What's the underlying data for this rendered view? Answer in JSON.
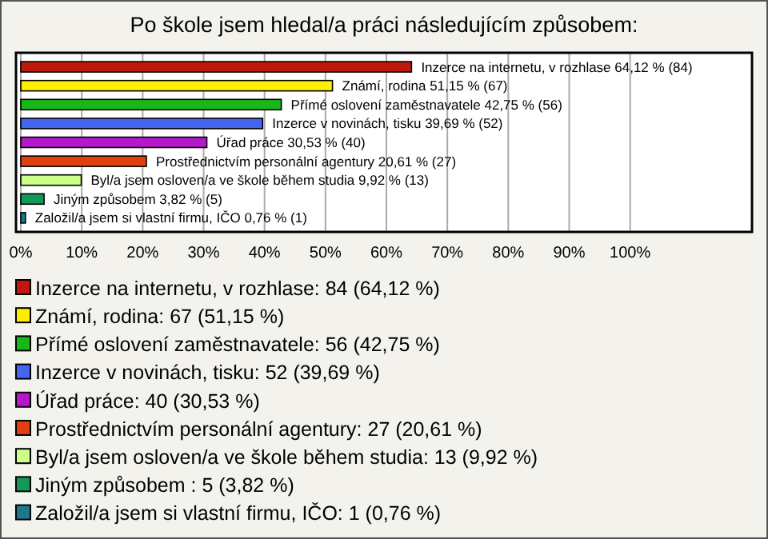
{
  "chart_data": {
    "type": "bar",
    "orientation": "horizontal",
    "title": "Po škole jsem hledal/a práci následujícím způsobem:",
    "categories": [
      null,
      null,
      null,
      null,
      null,
      null,
      null,
      null,
      null
    ],
    "series": [
      {
        "name": "Inzerce na internetu, v rozhlase: 84 (64,12 %)",
        "color": "#c0180c",
        "values": [
          64.12,
          null,
          null,
          null,
          null,
          null,
          null,
          null,
          null
        ],
        "value_labels": [
          "Inzerce na internetu, v rozhlase 64,12 % (84)",
          null,
          null,
          null,
          null,
          null,
          null,
          null,
          null
        ]
      },
      {
        "name": "Známí, rodina: 67 (51,15 %)",
        "color": "#ffee00",
        "values": [
          null,
          51.15,
          null,
          null,
          null,
          null,
          null,
          null,
          null
        ],
        "value_labels": [
          null,
          "Známí, rodina 51,15 % (67)",
          null,
          null,
          null,
          null,
          null,
          null,
          null
        ]
      },
      {
        "name": "Přímé oslovení zaměstnavatele: 56 (42,75 %)",
        "color": "#18b818",
        "values": [
          null,
          null,
          42.75,
          null,
          null,
          null,
          null,
          null,
          null
        ],
        "value_labels": [
          null,
          null,
          "Přímé oslovení zaměstnavatele 42,75 % (56)",
          null,
          null,
          null,
          null,
          null,
          null
        ]
      },
      {
        "name": "Inzerce v novinách, tisku: 52 (39,69 %)",
        "color": "#4466ee",
        "values": [
          null,
          null,
          null,
          39.69,
          null,
          null,
          null,
          null,
          null
        ],
        "value_labels": [
          null,
          null,
          null,
          "Inzerce v novinách, tisku 39,69 % (52)",
          null,
          null,
          null,
          null,
          null
        ]
      },
      {
        "name": "Úřad práce: 40 (30,53 %)",
        "color": "#b418c8",
        "values": [
          null,
          null,
          null,
          null,
          30.53,
          null,
          null,
          null,
          null
        ],
        "value_labels": [
          null,
          null,
          null,
          null,
          "Úřad práce 30,53 % (40)",
          null,
          null,
          null,
          null
        ]
      },
      {
        "name": "Prostřednictvím personální agentury: 27 (20,61 %)",
        "color": "#e04010",
        "values": [
          null,
          null,
          null,
          null,
          null,
          20.61,
          null,
          null,
          null
        ],
        "value_labels": [
          null,
          null,
          null,
          null,
          null,
          "Prostřednictvím personální agentury 20,61 % (27)",
          null,
          null,
          null
        ]
      },
      {
        "name": "Byl/a jsem osloven/a ve škole během studia: 13 (9,92 %)",
        "color": "#ccff88",
        "values": [
          null,
          null,
          null,
          null,
          null,
          null,
          9.92,
          null,
          null
        ],
        "value_labels": [
          null,
          null,
          null,
          null,
          null,
          null,
          "Byl/a jsem osloven/a ve škole během studia 9,92 % (13)",
          null,
          null
        ]
      },
      {
        "name": "Jiným způsobem : 5 (3,82 %)",
        "color": "#119955",
        "values": [
          null,
          null,
          null,
          null,
          null,
          null,
          null,
          3.82,
          null
        ],
        "value_labels": [
          null,
          null,
          null,
          null,
          null,
          null,
          null,
          "Jiným způsobem  3,82 % (5)",
          null
        ]
      },
      {
        "name": "Založil/a jsem si vlastní firmu, IČO: 1 (0,76 %)",
        "color": "#1a7a8c",
        "values": [
          null,
          null,
          null,
          null,
          null,
          null,
          null,
          null,
          0.76
        ],
        "value_labels": [
          null,
          null,
          null,
          null,
          null,
          null,
          null,
          null,
          "Založil/a jsem si vlastní firmu, IČO 0,76 % (1)"
        ]
      }
    ],
    "xlim": [
      0,
      120
    ],
    "xticks": [
      {
        "value": 0,
        "label": "0%"
      },
      {
        "value": 10,
        "label": "10%"
      },
      {
        "value": 20,
        "label": "20%"
      },
      {
        "value": 30,
        "label": "30%"
      },
      {
        "value": 40,
        "label": "40%"
      },
      {
        "value": 50,
        "label": "50%"
      },
      {
        "value": 60,
        "label": "60%"
      },
      {
        "value": 70,
        "label": "70%"
      },
      {
        "value": 80,
        "label": "80%"
      },
      {
        "value": 90,
        "label": "90%"
      },
      {
        "value": 100,
        "label": "100%"
      }
    ],
    "grid": "x",
    "legend": "bottom"
  }
}
